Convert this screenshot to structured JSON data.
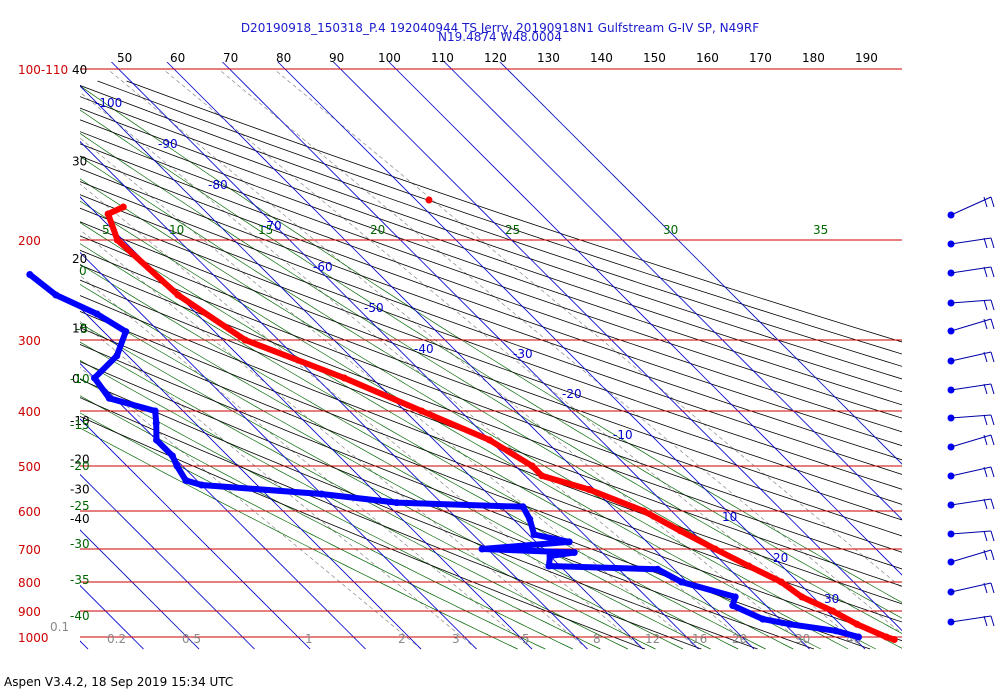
{
  "header": {
    "line1": "D20190918_150318_P.4 192040944 TS Jerry, 20190918N1 Gulfstream G-IV SP, N49RF",
    "line2": "N19.4874 W48.0004"
  },
  "footer": {
    "text": "Aspen V3.4.2, 18 Sep 2019  15:34 UTC"
  },
  "colors": {
    "temperature": "#ff0000",
    "dewpoint": "#0000ff",
    "pressure_lines": "#cc0000",
    "isotherms": "#0000cc",
    "dry_adiabats": "#000000",
    "moist_adiabats": "#006600",
    "mixing_ratio": "#888888"
  },
  "chart_data": {
    "type": "scatter",
    "chart_kind": "Skew-T log-P sounding",
    "pressure_labels": [
      "100-110",
      "200",
      "300",
      "400",
      "500",
      "600",
      "700",
      "800",
      "900",
      "1000"
    ],
    "altitude_labels": [
      "40",
      "30",
      "20",
      "10",
      "0",
      "-10",
      "-20",
      "-30",
      "-40"
    ],
    "top_temperature_labels": [
      "50",
      "60",
      "70",
      "80",
      "90",
      "100",
      "110",
      "120",
      "130",
      "140",
      "150",
      "160",
      "170",
      "180",
      "190"
    ],
    "isotherm_labels": [
      "-100",
      "-90",
      "-80",
      "-70",
      "-60",
      "-50",
      "-40",
      "-30",
      "-20",
      "-10",
      "10",
      "20",
      "30"
    ],
    "theta_e_labels_top": [
      "5",
      "10",
      "15",
      "20",
      "25",
      "30",
      "35"
    ],
    "theta_e_labels_left": [
      "0",
      "-5",
      "-10",
      "-15",
      "-20",
      "-25",
      "-30",
      "-35",
      "-40"
    ],
    "mixing_ratio_labels": [
      "0.1",
      "0.2",
      "0.5",
      "1",
      "2",
      "3",
      "5",
      "8",
      "12",
      "16",
      "20",
      "30",
      "40"
    ],
    "series": [
      {
        "name": "Temperature",
        "units": "C / hPa",
        "points": [
          [
            -34,
            175
          ],
          [
            -38,
            180
          ],
          [
            -41,
            200
          ],
          [
            -40,
            250
          ],
          [
            -36,
            300
          ],
          [
            -25,
            350
          ],
          [
            -17,
            400
          ],
          [
            -10,
            450
          ],
          [
            -7,
            500
          ],
          [
            -7,
            520
          ],
          [
            -1,
            550
          ],
          [
            5,
            600
          ],
          [
            8,
            650
          ],
          [
            11,
            700
          ],
          [
            14,
            750
          ],
          [
            17,
            800
          ],
          [
            18,
            850
          ],
          [
            21,
            900
          ],
          [
            23,
            950
          ],
          [
            26,
            1000
          ],
          [
            27,
            1010
          ]
        ]
      },
      {
        "name": "Dewpoint",
        "units": "C / hPa",
        "points": [
          [
            -63,
            230
          ],
          [
            -62,
            250
          ],
          [
            -58,
            270
          ],
          [
            -56,
            290
          ],
          [
            -62,
            320
          ],
          [
            -70,
            350
          ],
          [
            -71,
            380
          ],
          [
            -65,
            400
          ],
          [
            -67,
            420
          ],
          [
            -70,
            450
          ],
          [
            -70,
            480
          ],
          [
            -71,
            500
          ],
          [
            -72,
            530
          ],
          [
            -70,
            540
          ],
          [
            -50,
            560
          ],
          [
            -38,
            580
          ],
          [
            -16,
            590
          ],
          [
            -17,
            620
          ],
          [
            -19,
            660
          ],
          [
            -14,
            680
          ],
          [
            -31,
            700
          ],
          [
            -15,
            710
          ],
          [
            -20,
            720
          ],
          [
            -22,
            750
          ],
          [
            -3,
            760
          ],
          [
            -1,
            800
          ],
          [
            6,
            850
          ],
          [
            4,
            880
          ],
          [
            7,
            930
          ],
          [
            11,
            950
          ],
          [
            18,
            975
          ],
          [
            21,
            1000
          ]
        ]
      }
    ],
    "wind_barbs": {
      "count": 15,
      "units": "kt"
    }
  }
}
